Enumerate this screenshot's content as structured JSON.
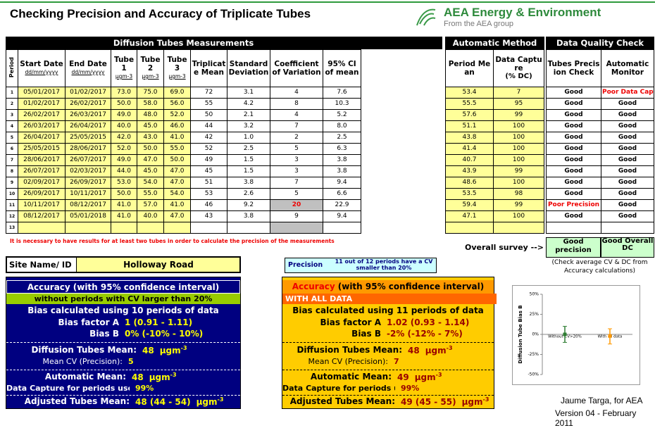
{
  "header": {
    "title": "Checking Precision and Accuracy of Triplicate Tubes",
    "logo": "AEA Energy & Environment",
    "logo_sub": "From the AEA group"
  },
  "table": {
    "title": "Diffusion Tubes Measurements",
    "columns": [
      {
        "label": "Period"
      },
      {
        "label": "Start Date",
        "unit": "dd/mm/yyyy"
      },
      {
        "label": "End Date",
        "unit": "dd/mm/yyyy"
      },
      {
        "label": "Tube 1",
        "unit": "µgm-3"
      },
      {
        "label": "Tube 2",
        "unit": "µgm-3"
      },
      {
        "label": "Tube 3",
        "unit": "µgm-3"
      },
      {
        "label": "Triplicate Mean"
      },
      {
        "label": "Standard Deviation"
      },
      {
        "label": "Coefficient of Variation"
      },
      {
        "label": "95% CI of mean"
      }
    ],
    "rows": [
      [
        "1",
        "05/01/2017",
        "01/02/2017",
        "73.0",
        "75.0",
        "69.0",
        "72",
        "3.1",
        "4",
        "7.6"
      ],
      [
        "2",
        "01/02/2017",
        "26/02/2017",
        "50.0",
        "58.0",
        "56.0",
        "55",
        "4.2",
        "8",
        "10.3"
      ],
      [
        "3",
        "26/02/2017",
        "26/03/2017",
        "49.0",
        "48.0",
        "52.0",
        "50",
        "2.1",
        "4",
        "5.2"
      ],
      [
        "4",
        "26/03/2017",
        "26/04/2017",
        "40.0",
        "45.0",
        "46.0",
        "44",
        "3.2",
        "7",
        "8.0"
      ],
      [
        "5",
        "26/04/2017",
        "25/05/2015",
        "42.0",
        "43.0",
        "41.0",
        "42",
        "1.0",
        "2",
        "2.5"
      ],
      [
        "6",
        "25/05/2015",
        "28/06/2017",
        "52.0",
        "50.0",
        "55.0",
        "52",
        "2.5",
        "5",
        "6.3"
      ],
      [
        "7",
        "28/06/2017",
        "26/07/2017",
        "49.0",
        "47.0",
        "50.0",
        "49",
        "1.5",
        "3",
        "3.8"
      ],
      [
        "8",
        "26/07/2017",
        "02/03/2017",
        "44.0",
        "45.0",
        "47.0",
        "45",
        "1.5",
        "3",
        "3.8"
      ],
      [
        "9",
        "02/09/2017",
        "26/09/2017",
        "53.0",
        "54.0",
        "47.0",
        "51",
        "3.8",
        "7",
        "9.4"
      ],
      [
        "10",
        "26/09/2017",
        "10/11/2017",
        "50.0",
        "55.0",
        "54.0",
        "53",
        "2.6",
        "5",
        "6.6"
      ],
      [
        "11",
        "10/11/2017",
        "08/12/2017",
        "41.0",
        "57.0",
        "41.0",
        "46",
        "9.2",
        "20",
        "22.9"
      ],
      [
        "12",
        "08/12/2017",
        "05/01/2018",
        "41.0",
        "40.0",
        "47.0",
        "43",
        "3.8",
        "9",
        "9.4"
      ],
      [
        "13",
        null,
        null,
        null,
        null,
        null,
        null,
        null,
        null,
        null
      ]
    ]
  },
  "automatic": {
    "title": "Automatic Method",
    "columns": [
      {
        "label": "Period Mean"
      },
      {
        "label": "Data Capture",
        "unit": "(% DC)"
      }
    ],
    "rows": [
      [
        "53.4",
        "7"
      ],
      [
        "55.5",
        "95"
      ],
      [
        "57.6",
        "99"
      ],
      [
        "51.1",
        "100"
      ],
      [
        "43.8",
        "100"
      ],
      [
        "41.4",
        "100"
      ],
      [
        "40.7",
        "100"
      ],
      [
        "43.9",
        "99"
      ],
      [
        "48.6",
        "100"
      ],
      [
        "53.5",
        "98"
      ],
      [
        "59.4",
        "99"
      ],
      [
        "47.1",
        "100"
      ],
      [
        null,
        null
      ]
    ]
  },
  "quality": {
    "title": "Data Quality Check",
    "columns": [
      {
        "label": "Tubes Precision Check"
      },
      {
        "label": "Automatic Monitor"
      }
    ],
    "rows": [
      [
        "Good",
        "Poor Data Capture"
      ],
      [
        "Good",
        "Good"
      ],
      [
        "Good",
        "Good"
      ],
      [
        "Good",
        "Good"
      ],
      [
        "Good",
        "Good"
      ],
      [
        "Good",
        "Good"
      ],
      [
        "Good",
        "Good"
      ],
      [
        "Good",
        "Good"
      ],
      [
        "Good",
        "Good"
      ],
      [
        "Good",
        "Good"
      ],
      [
        "Poor Precision",
        "Good"
      ],
      [
        "Good",
        "Good"
      ],
      [
        null,
        null
      ]
    ]
  },
  "note": "It is necessary to have results for at least two tubes in order to calculate the precision of the measurements",
  "overall": {
    "label": "Overall survey -->",
    "precision": "Good precision",
    "dc": "Good Overall DC",
    "check": "(Check average CV & DC from Accuracy calculations)"
  },
  "site": {
    "label": "Site Name/ ID",
    "value": "Holloway Road"
  },
  "precision": {
    "label": "Precision",
    "text": "11 out of 12 periods have a CV smaller than 20%"
  },
  "units": {
    "unit": "µgm",
    "exp": "-3"
  },
  "accuracy_excluded": {
    "title": "Accuracy",
    "title_note": "(with 95% confidence interval)",
    "subtitle": "without periods with CV larger than 20%",
    "periods": "Bias calculated using 10 periods of data",
    "bias_a_label": "Bias factor A",
    "bias_a": "1 (0.91 - 1.11)",
    "bias_b_label": "Bias B",
    "bias_b": "0%  (-10% - 10%)",
    "tubes_mean_label": "Diffusion Tubes Mean:",
    "tubes_mean": "48",
    "cv_label": "Mean CV (Precision):",
    "cv": "5",
    "auto_mean_label": "Automatic Mean:",
    "auto_mean": "48",
    "dc_label": "Data Capture for periods used:",
    "dc": "99%",
    "adjusted_label": "Adjusted Tubes Mean:",
    "adjusted": "48 (44 - 54)"
  },
  "accuracy_all": {
    "title": "Accuracy",
    "title_note": "(with 95% confidence interval)",
    "subtitle": "WITH ALL DATA",
    "periods": "Bias calculated using 11 periods of data",
    "bias_a_label": "Bias factor A",
    "bias_a": "1.02 (0.93 - 1.14)",
    "bias_b_label": "Bias B",
    "bias_b": "-2%  (-12% - 7%)",
    "tubes_mean_label": "Diffusion Tubes Mean:",
    "tubes_mean": "48",
    "cv_label": "Mean CV (Precision):",
    "cv": "7",
    "auto_mean_label": "Automatic Mean:",
    "auto_mean": "49",
    "dc_label": "Data Capture for periods used:",
    "dc": "99%",
    "adjusted_label": "Adjusted Tubes Mean:",
    "adjusted": "49 (45 - 55)"
  },
  "chart_data": {
    "type": "errorbar",
    "ylabel": "Diffusion Tube Bias B",
    "categories": [
      "Without CV>20%",
      "With all data"
    ],
    "values": [
      0,
      -2
    ],
    "errors_low": [
      -10,
      -12
    ],
    "errors_high": [
      10,
      7
    ],
    "colors": [
      "#2e7d32",
      "#ff9900"
    ],
    "ylim": [
      -50,
      50
    ],
    "yticks": [
      {
        "value": 50,
        "label": "50%"
      },
      {
        "value": 25,
        "label": "25%"
      },
      {
        "value": 0,
        "label": "0%"
      },
      {
        "value": -25,
        "label": "-25%"
      },
      {
        "value": -50,
        "label": "-50%"
      }
    ]
  },
  "footer": {
    "author": "Jaume Targa, for AEA",
    "version": "Version 04 - February 2011"
  }
}
